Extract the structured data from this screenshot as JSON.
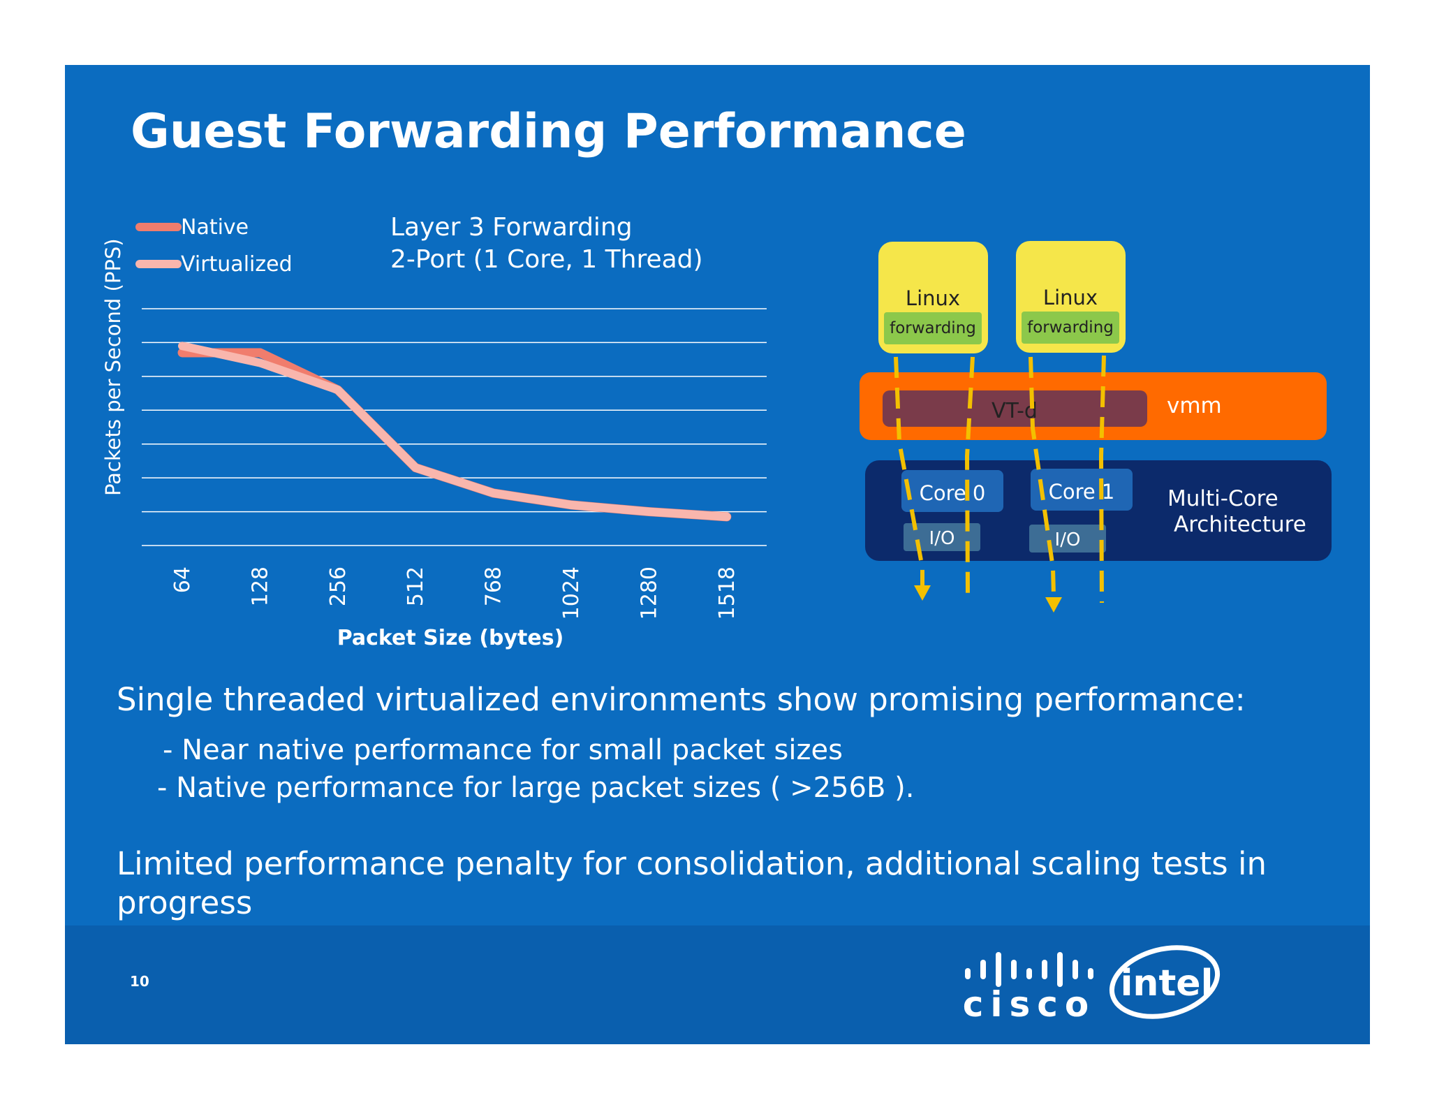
{
  "slide": {
    "title": "Guest Forwarding Performance",
    "page_number": "10",
    "colors": {
      "background": "#0b6cc0",
      "footer_band": "#0a5fae",
      "native_series": "#f07d6d",
      "virtualized_series": "#f9b6ad",
      "linux_box": "#f5e64a",
      "forwarding_box": "#8cc84b",
      "vmm": "#ff6a00",
      "vtd": "#7a3b4a",
      "multicore": "#0c2a6b",
      "core_box": "#1f66b4",
      "io_box": "#3d6d95",
      "arrow": "#f3c000"
    }
  },
  "chart_data": {
    "type": "line",
    "title": "Layer 3 Forwarding",
    "subtitle": "2-Port (1 Core, 1 Thread)",
    "xlabel": "Packet Size (bytes)",
    "ylabel": "Packets per Second (PPS)",
    "categories": [
      "64",
      "128",
      "256",
      "512",
      "768",
      "1024",
      "1280",
      "1518"
    ],
    "ylim": [
      0,
      7
    ],
    "y_tick_labels_shown": false,
    "grid": true,
    "legend_position": "top-left",
    "series": [
      {
        "name": "Native",
        "color": "#f07d6d",
        "values": [
          5.7,
          5.7,
          4.6,
          2.3,
          1.55,
          1.2,
          1.0,
          0.85
        ]
      },
      {
        "name": "Virtualized",
        "color": "#f9b6ad",
        "values": [
          5.9,
          5.4,
          4.6,
          2.3,
          1.55,
          1.2,
          1.0,
          0.85
        ]
      }
    ]
  },
  "diagram": {
    "guests": [
      {
        "label": "Linux",
        "sublabel": "forwarding"
      },
      {
        "label": "Linux",
        "sublabel": "forwarding"
      }
    ],
    "vmm_label": "vmm",
    "vtd_label": "VT-d",
    "cores": [
      {
        "label": "Core 0",
        "io": "I/O"
      },
      {
        "label": "Core 1",
        "io": "I/O"
      }
    ],
    "architecture_label": [
      "Multi-Core",
      "Architecture"
    ]
  },
  "body": {
    "main": "Single threaded virtualized environments show promising performance:",
    "bullets": [
      "- Near native performance for small packet sizes",
      "- Native performance for large packet sizes ( >256B )."
    ],
    "limited": "Limited performance penalty for consolidation, additional scaling tests in progress"
  },
  "logos": {
    "cisco": "cisco",
    "intel": "intel"
  }
}
